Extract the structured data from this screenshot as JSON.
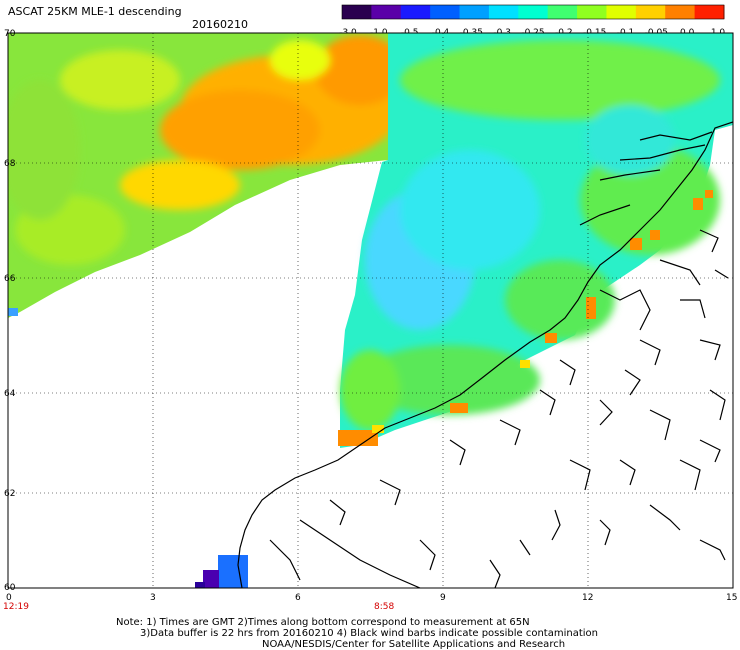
{
  "title": "ASCAT 25KM MLE-1 descending",
  "date": "20160210",
  "colorbar": {
    "ticks": [
      "-3.0",
      "-1.0",
      "-0.5",
      "-0.4",
      "-0.35",
      "-0.3",
      "-0.25",
      "-0.2",
      "-0.15",
      "-0.1",
      "-0.05",
      "0.0",
      "1.0"
    ],
    "colors": [
      "#2a004f",
      "#5a00a8",
      "#1a1aff",
      "#0060ff",
      "#00a0ff",
      "#00e0ff",
      "#00ffd0",
      "#40ff70",
      "#90ff20",
      "#e0ff00",
      "#ffd000",
      "#ff8000",
      "#ff2000"
    ]
  },
  "axes": {
    "lat_ticks": [
      "70",
      "68",
      "66",
      "64",
      "62",
      "60"
    ],
    "lon_ticks": [
      "0",
      "3",
      "6",
      "9",
      "12",
      "15"
    ],
    "time_labels": [
      "12:19",
      "8:58"
    ]
  },
  "notes": {
    "line1": "Note: 1) Times are GMT 2)Times along bottom correspond to measurement at 65N",
    "line2": "3)Data buffer is 22 hrs from 20160210 4) Black wind barbs indicate possible contamination",
    "line3": "NOAA/NESDIS/Center for Satellite Applications and Research"
  },
  "chart_data": {
    "type": "heatmap",
    "title": "ASCAT 25KM MLE-1 descending",
    "date": "20160210",
    "xlim": [
      0,
      15
    ],
    "ylim": [
      60,
      70
    ],
    "regions": [
      {
        "area": "northwest swath (Norwegian Sea)",
        "value_range": [
          -0.15,
          -0.05
        ]
      },
      {
        "area": "eastern swath over Norwegian shelf",
        "value_range": [
          -0.35,
          -0.2
        ]
      },
      {
        "area": "coastal edge cells",
        "value_range": [
          0.0,
          1.0
        ]
      },
      {
        "area": "southwest corner cells near 60N 5E",
        "value_range": [
          -3.0,
          -0.4
        ]
      }
    ]
  }
}
